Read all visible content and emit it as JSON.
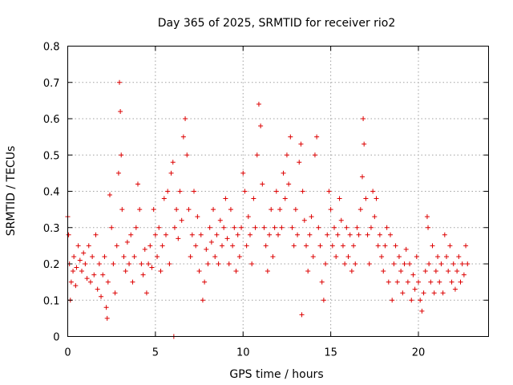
{
  "chart_data": {
    "type": "scatter",
    "title": "Day 365 of 2025, SRMTID for receiver rio2",
    "xlabel": "GPS time / hours",
    "ylabel": "SRMTID / TECUs",
    "xlim": [
      0,
      24
    ],
    "ylim": [
      0,
      0.8
    ],
    "xticks": [
      0,
      5,
      10,
      15,
      20
    ],
    "xtick_labels": [
      "0",
      "5",
      "10",
      "15",
      "20"
    ],
    "yticks": [
      0,
      0.1,
      0.2,
      0.3,
      0.4,
      0.5,
      0.6,
      0.7,
      0.8
    ],
    "ytick_labels": [
      "0",
      "0.1",
      "0.2",
      "0.3",
      "0.4",
      "0.5",
      "0.6",
      "0.7",
      "0.8"
    ],
    "grid": true,
    "marker": "+",
    "color": "#dd0000",
    "series": [
      {
        "name": "rio2",
        "points": [
          [
            0.0,
            0.33
          ],
          [
            0.05,
            0.28
          ],
          [
            0.1,
            0.2
          ],
          [
            0.15,
            0.1
          ],
          [
            0.2,
            0.15
          ],
          [
            0.3,
            0.18
          ],
          [
            0.35,
            0.22
          ],
          [
            0.45,
            0.14
          ],
          [
            0.5,
            0.19
          ],
          [
            0.6,
            0.25
          ],
          [
            0.7,
            0.21
          ],
          [
            0.8,
            0.18
          ],
          [
            0.9,
            0.23
          ],
          [
            1.0,
            0.2
          ],
          [
            1.1,
            0.16
          ],
          [
            1.2,
            0.25
          ],
          [
            1.3,
            0.15
          ],
          [
            1.4,
            0.22
          ],
          [
            1.5,
            0.17
          ],
          [
            1.6,
            0.28
          ],
          [
            1.7,
            0.13
          ],
          [
            1.8,
            0.2
          ],
          [
            1.9,
            0.11
          ],
          [
            2.0,
            0.17
          ],
          [
            2.1,
            0.22
          ],
          [
            2.2,
            0.08
          ],
          [
            2.25,
            0.05
          ],
          [
            2.3,
            0.15
          ],
          [
            2.4,
            0.39
          ],
          [
            2.5,
            0.3
          ],
          [
            2.6,
            0.2
          ],
          [
            2.7,
            0.12
          ],
          [
            2.8,
            0.25
          ],
          [
            2.9,
            0.45
          ],
          [
            2.95,
            0.7
          ],
          [
            3.0,
            0.62
          ],
          [
            3.05,
            0.5
          ],
          [
            3.1,
            0.35
          ],
          [
            3.2,
            0.22
          ],
          [
            3.3,
            0.18
          ],
          [
            3.4,
            0.26
          ],
          [
            3.5,
            0.2
          ],
          [
            3.6,
            0.28
          ],
          [
            3.7,
            0.15
          ],
          [
            3.8,
            0.22
          ],
          [
            3.9,
            0.3
          ],
          [
            4.0,
            0.42
          ],
          [
            4.1,
            0.35
          ],
          [
            4.2,
            0.2
          ],
          [
            4.3,
            0.17
          ],
          [
            4.4,
            0.24
          ],
          [
            4.5,
            0.12
          ],
          [
            4.6,
            0.2
          ],
          [
            4.7,
            0.25
          ],
          [
            4.8,
            0.19
          ],
          [
            4.9,
            0.35
          ],
          [
            5.0,
            0.28
          ],
          [
            5.1,
            0.22
          ],
          [
            5.2,
            0.3
          ],
          [
            5.3,
            0.18
          ],
          [
            5.4,
            0.25
          ],
          [
            5.5,
            0.38
          ],
          [
            5.6,
            0.28
          ],
          [
            5.7,
            0.4
          ],
          [
            5.8,
            0.2
          ],
          [
            5.9,
            0.45
          ],
          [
            6.0,
            0.48
          ],
          [
            6.05,
            0.0
          ],
          [
            6.1,
            0.3
          ],
          [
            6.2,
            0.35
          ],
          [
            6.3,
            0.27
          ],
          [
            6.4,
            0.4
          ],
          [
            6.5,
            0.32
          ],
          [
            6.6,
            0.55
          ],
          [
            6.7,
            0.6
          ],
          [
            6.8,
            0.5
          ],
          [
            6.9,
            0.35
          ],
          [
            7.0,
            0.22
          ],
          [
            7.1,
            0.28
          ],
          [
            7.2,
            0.4
          ],
          [
            7.3,
            0.25
          ],
          [
            7.4,
            0.33
          ],
          [
            7.5,
            0.18
          ],
          [
            7.6,
            0.28
          ],
          [
            7.7,
            0.1
          ],
          [
            7.8,
            0.15
          ],
          [
            7.9,
            0.24
          ],
          [
            8.0,
            0.2
          ],
          [
            8.1,
            0.3
          ],
          [
            8.2,
            0.26
          ],
          [
            8.3,
            0.35
          ],
          [
            8.4,
            0.22
          ],
          [
            8.5,
            0.28
          ],
          [
            8.6,
            0.2
          ],
          [
            8.7,
            0.32
          ],
          [
            8.8,
            0.25
          ],
          [
            8.9,
            0.3
          ],
          [
            9.0,
            0.38
          ],
          [
            9.1,
            0.27
          ],
          [
            9.2,
            0.2
          ],
          [
            9.3,
            0.35
          ],
          [
            9.4,
            0.25
          ],
          [
            9.5,
            0.3
          ],
          [
            9.6,
            0.18
          ],
          [
            9.7,
            0.28
          ],
          [
            9.8,
            0.22
          ],
          [
            9.9,
            0.3
          ],
          [
            10.0,
            0.45
          ],
          [
            10.1,
            0.4
          ],
          [
            10.2,
            0.25
          ],
          [
            10.3,
            0.33
          ],
          [
            10.4,
            0.28
          ],
          [
            10.5,
            0.2
          ],
          [
            10.6,
            0.38
          ],
          [
            10.7,
            0.3
          ],
          [
            10.8,
            0.5
          ],
          [
            10.9,
            0.64
          ],
          [
            11.0,
            0.58
          ],
          [
            11.1,
            0.42
          ],
          [
            11.2,
            0.3
          ],
          [
            11.3,
            0.25
          ],
          [
            11.4,
            0.18
          ],
          [
            11.5,
            0.28
          ],
          [
            11.6,
            0.35
          ],
          [
            11.7,
            0.22
          ],
          [
            11.8,
            0.3
          ],
          [
            11.9,
            0.4
          ],
          [
            12.0,
            0.28
          ],
          [
            12.1,
            0.35
          ],
          [
            12.2,
            0.3
          ],
          [
            12.3,
            0.45
          ],
          [
            12.4,
            0.38
          ],
          [
            12.5,
            0.5
          ],
          [
            12.6,
            0.42
          ],
          [
            12.7,
            0.55
          ],
          [
            12.8,
            0.3
          ],
          [
            12.9,
            0.25
          ],
          [
            13.0,
            0.35
          ],
          [
            13.1,
            0.28
          ],
          [
            13.2,
            0.48
          ],
          [
            13.3,
            0.53
          ],
          [
            13.35,
            0.06
          ],
          [
            13.4,
            0.4
          ],
          [
            13.5,
            0.32
          ],
          [
            13.6,
            0.25
          ],
          [
            13.7,
            0.18
          ],
          [
            13.8,
            0.28
          ],
          [
            13.9,
            0.33
          ],
          [
            14.0,
            0.22
          ],
          [
            14.1,
            0.5
          ],
          [
            14.2,
            0.55
          ],
          [
            14.3,
            0.3
          ],
          [
            14.4,
            0.25
          ],
          [
            14.5,
            0.15
          ],
          [
            14.6,
            0.1
          ],
          [
            14.7,
            0.2
          ],
          [
            14.8,
            0.28
          ],
          [
            14.9,
            0.4
          ],
          [
            15.0,
            0.35
          ],
          [
            15.1,
            0.25
          ],
          [
            15.2,
            0.3
          ],
          [
            15.3,
            0.22
          ],
          [
            15.4,
            0.28
          ],
          [
            15.5,
            0.38
          ],
          [
            15.6,
            0.32
          ],
          [
            15.7,
            0.25
          ],
          [
            15.8,
            0.2
          ],
          [
            15.9,
            0.3
          ],
          [
            16.0,
            0.22
          ],
          [
            16.1,
            0.28
          ],
          [
            16.2,
            0.18
          ],
          [
            16.3,
            0.25
          ],
          [
            16.4,
            0.2
          ],
          [
            16.5,
            0.3
          ],
          [
            16.6,
            0.28
          ],
          [
            16.7,
            0.35
          ],
          [
            16.8,
            0.44
          ],
          [
            16.85,
            0.6
          ],
          [
            16.9,
            0.53
          ],
          [
            17.0,
            0.38
          ],
          [
            17.1,
            0.28
          ],
          [
            17.2,
            0.2
          ],
          [
            17.3,
            0.3
          ],
          [
            17.4,
            0.4
          ],
          [
            17.5,
            0.33
          ],
          [
            17.6,
            0.38
          ],
          [
            17.7,
            0.25
          ],
          [
            17.8,
            0.28
          ],
          [
            17.9,
            0.22
          ],
          [
            18.0,
            0.18
          ],
          [
            18.1,
            0.25
          ],
          [
            18.2,
            0.3
          ],
          [
            18.3,
            0.15
          ],
          [
            18.4,
            0.28
          ],
          [
            18.5,
            0.1
          ],
          [
            18.6,
            0.2
          ],
          [
            18.7,
            0.25
          ],
          [
            18.8,
            0.15
          ],
          [
            18.9,
            0.22
          ],
          [
            19.0,
            0.18
          ],
          [
            19.1,
            0.12
          ],
          [
            19.2,
            0.2
          ],
          [
            19.3,
            0.24
          ],
          [
            19.4,
            0.15
          ],
          [
            19.5,
            0.2
          ],
          [
            19.6,
            0.1
          ],
          [
            19.7,
            0.17
          ],
          [
            19.8,
            0.13
          ],
          [
            19.9,
            0.22
          ],
          [
            20.0,
            0.15
          ],
          [
            20.1,
            0.1
          ],
          [
            20.2,
            0.07
          ],
          [
            20.3,
            0.12
          ],
          [
            20.4,
            0.18
          ],
          [
            20.5,
            0.33
          ],
          [
            20.55,
            0.3
          ],
          [
            20.6,
            0.2
          ],
          [
            20.7,
            0.15
          ],
          [
            20.8,
            0.25
          ],
          [
            20.9,
            0.12
          ],
          [
            21.0,
            0.18
          ],
          [
            21.1,
            0.22
          ],
          [
            21.2,
            0.15
          ],
          [
            21.3,
            0.2
          ],
          [
            21.4,
            0.12
          ],
          [
            21.5,
            0.28
          ],
          [
            21.6,
            0.22
          ],
          [
            21.7,
            0.18
          ],
          [
            21.8,
            0.25
          ],
          [
            21.9,
            0.15
          ],
          [
            22.0,
            0.2
          ],
          [
            22.1,
            0.13
          ],
          [
            22.2,
            0.18
          ],
          [
            22.3,
            0.22
          ],
          [
            22.4,
            0.15
          ],
          [
            22.5,
            0.2
          ],
          [
            22.6,
            0.17
          ],
          [
            22.7,
            0.25
          ],
          [
            22.8,
            0.2
          ]
        ]
      }
    ]
  }
}
